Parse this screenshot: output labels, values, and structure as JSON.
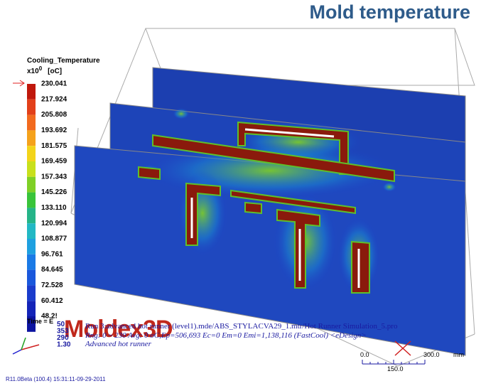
{
  "header": {
    "title": "Mold temperature"
  },
  "legend": {
    "title": "Cooling_Temperature",
    "scale_prefix": "x10",
    "scale_exponent": "0",
    "unit": "[oC]",
    "values": [
      "230.041",
      "217.924",
      "205.808",
      "193.692",
      "181.575",
      "169.459",
      "157.343",
      "145.226",
      "133.110",
      "120.994",
      "108.877",
      "96.761",
      "84.645",
      "72.528",
      "60.412",
      "48.2!"
    ],
    "colors": [
      "#c0180c",
      "#e2401a",
      "#f26a1e",
      "#f5a21c",
      "#f3d41a",
      "#c8e01c",
      "#7fd026",
      "#39c43a",
      "#25b488",
      "#22b8c4",
      "#1ea0e0",
      "#1a7ae6",
      "#1a58dc",
      "#1a3ccc",
      "#1424b8",
      "#0c14a0"
    ],
    "time": "Time = E"
  },
  "logo": "Moldex3D",
  "info": {
    "numbers": [
      "50",
      "353",
      "290",
      "1.30"
    ],
    "run": "Run 3:advanced hot runner (level1).mde/ABS_STYLACVA29_1.mtr/Hot Runner Simulation_5.pro",
    "range": "Rng: 0 ~ 230  Avg: 0 oC,Ep=506,693 Ec=0 Em=0 Emi=1,138,116 (FastCool) <eDesign>",
    "description": "Advanced hot runner"
  },
  "ruler": {
    "start": "0.0",
    "end": "300.0",
    "unit": "mm",
    "middle": "150.0"
  },
  "footer": "R11.0Beta (100.4) 15:31:11-09-29-2011"
}
